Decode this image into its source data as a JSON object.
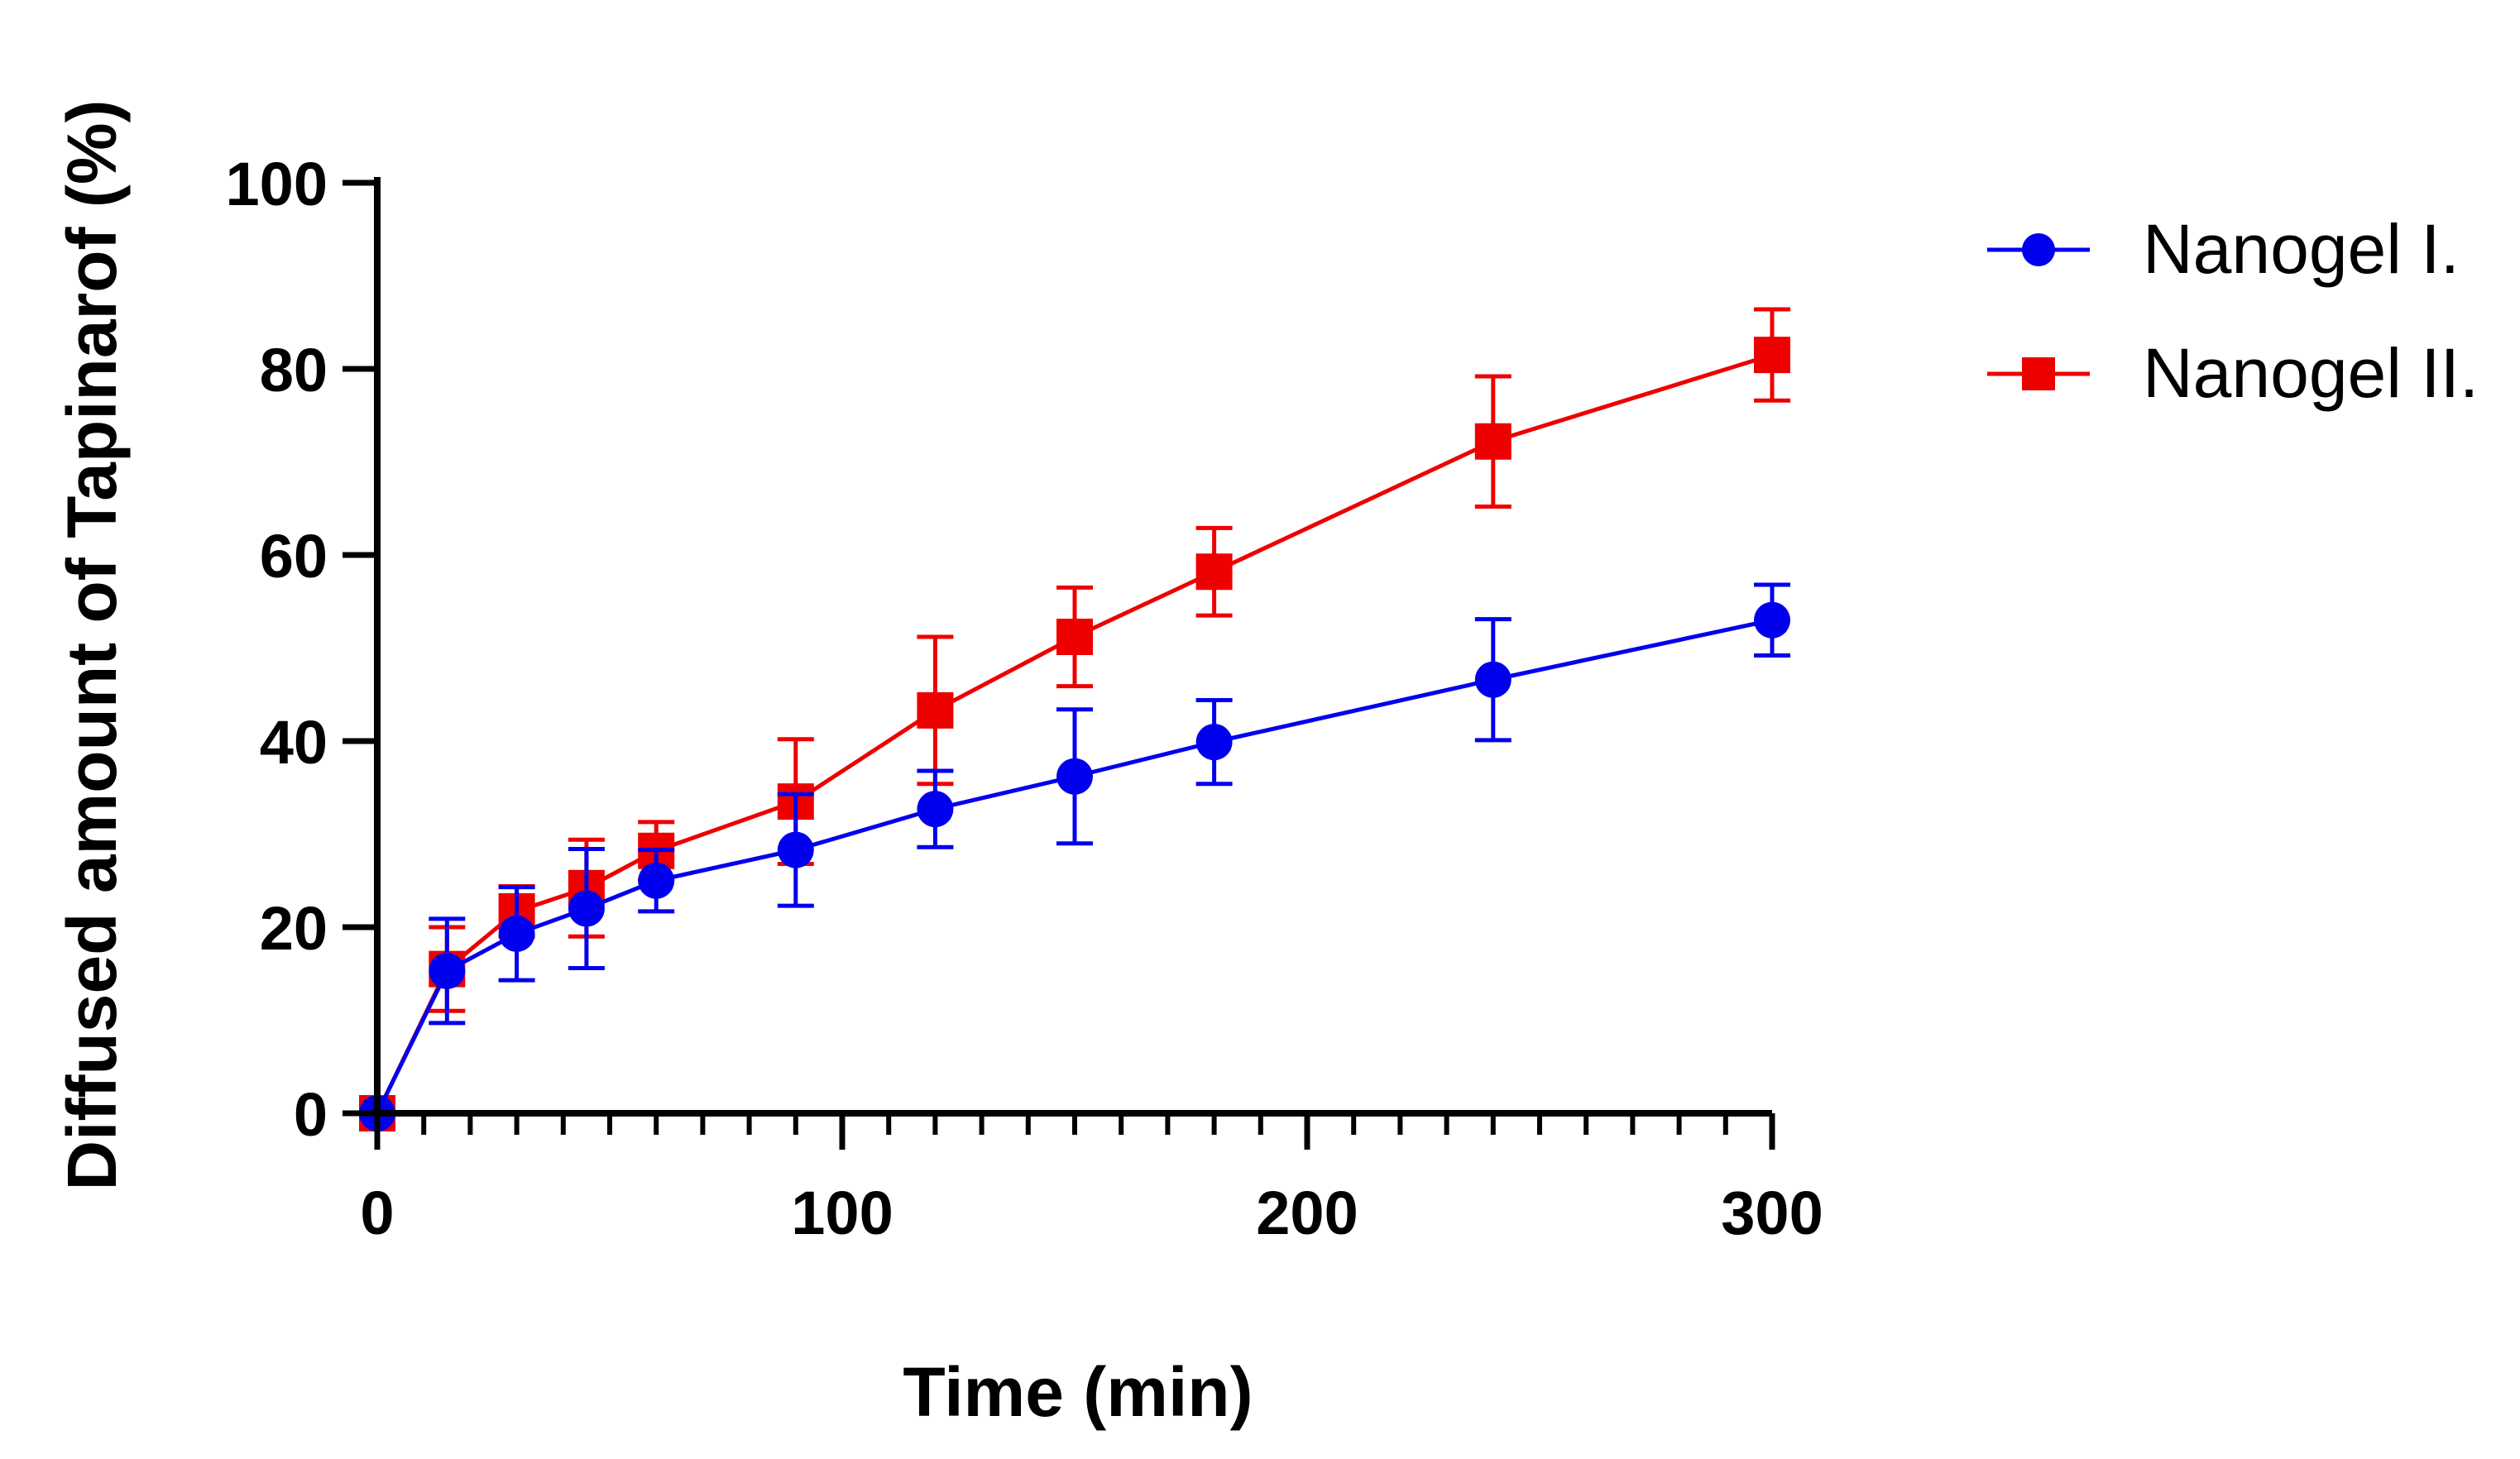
{
  "chart_data": {
    "type": "line",
    "title": "",
    "xlabel": "Time (min)",
    "ylabel": "Diffused amount of Tapinarof (%)",
    "xlim": [
      0,
      300
    ],
    "ylim": [
      0,
      100
    ],
    "x_ticks": [
      0,
      100,
      200,
      300
    ],
    "x_tick_labels": [
      "0",
      "100",
      "200",
      "300"
    ],
    "x_minor_step": 10,
    "y_ticks": [
      0,
      20,
      40,
      60,
      80,
      100
    ],
    "y_tick_labels": [
      "0",
      "20",
      "40",
      "60",
      "80",
      "100"
    ],
    "grid": false,
    "legend_position": "top-right, outside plot",
    "x": [
      0,
      15,
      30,
      45,
      60,
      90,
      120,
      150,
      180,
      240,
      300
    ],
    "series": [
      {
        "name": "Nanogel I.",
        "marker": "circle",
        "color": "#0000ee",
        "values": [
          0,
          15.3,
          19.3,
          22,
          25,
          28.3,
          32.7,
          36.2,
          39.9,
          46.6,
          53
        ],
        "error": [
          0,
          5.6,
          5,
          6.4,
          3.3,
          6,
          4.1,
          7.2,
          4.5,
          6.5,
          3.8
        ]
      },
      {
        "name": "Nanogel II.",
        "marker": "square",
        "color": "#ee0000",
        "values": [
          0,
          15.5,
          21.7,
          24.2,
          28.2,
          33.5,
          43.3,
          51.2,
          58.2,
          72.2,
          81.5
        ],
        "error": [
          0,
          4.5,
          2.7,
          5.2,
          3.1,
          6.7,
          7.9,
          5.3,
          4.7,
          7,
          4.9
        ]
      }
    ]
  }
}
